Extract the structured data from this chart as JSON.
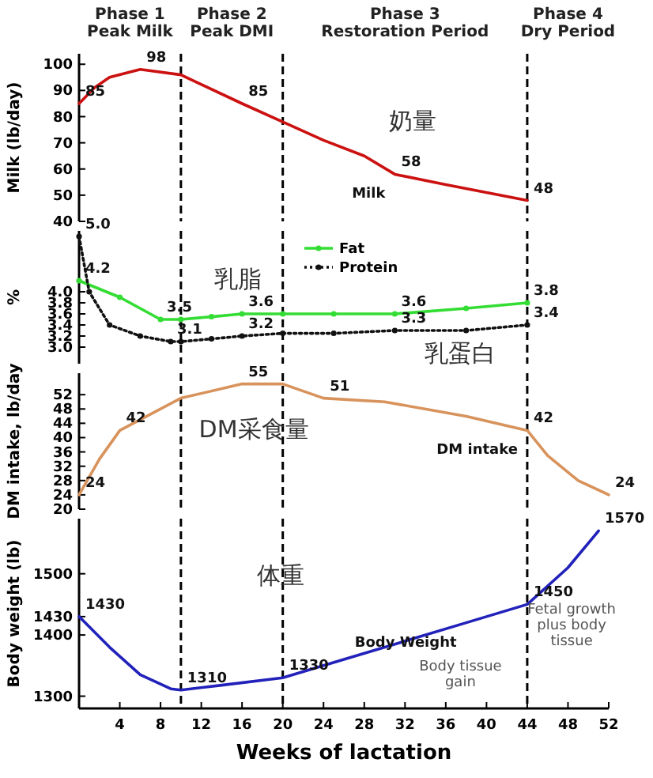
{
  "chart_data": [
    {
      "type": "line",
      "ylabel": "Milk (lb/day)",
      "xlim": [
        0,
        52
      ],
      "ylim": [
        40,
        104
      ],
      "yticks": [
        40,
        50,
        60,
        70,
        80,
        90,
        100
      ],
      "tick_labels": "y",
      "grid": false,
      "legend": false,
      "annotations": [
        "Phase 1\nPeak Milk",
        "Phase 2\nPeak DMI",
        "Phase 3\nRestoration Period",
        "Phase 4\nDry Period",
        "奶量"
      ],
      "ref_lines": [
        {
          "axis": "x",
          "value": 10,
          "line_style": "dashed",
          "color": "#000000"
        },
        {
          "axis": "x",
          "value": 20,
          "line_style": "dashed",
          "color": "#000000"
        },
        {
          "axis": "x",
          "value": 44,
          "line_style": "dashed",
          "color": "#000000"
        }
      ],
      "series": [
        {
          "name": "Milk",
          "color": "#cc1111",
          "x": [
            0,
            1.5,
            3,
            6,
            10,
            16,
            20,
            24,
            28,
            31,
            36,
            40,
            44
          ],
          "values": [
            85,
            91,
            95,
            98,
            96,
            85,
            78,
            71,
            65,
            58,
            54,
            51,
            48
          ],
          "value_labels": [
            "85",
            null,
            null,
            "98",
            null,
            "85",
            null,
            null,
            null,
            "58",
            null,
            null,
            "48"
          ]
        }
      ]
    },
    {
      "type": "line",
      "ylabel": "%",
      "xlim": [
        0,
        52
      ],
      "ylim": [
        2.7,
        5.1
      ],
      "yticks": [
        {
          "value": 3.0,
          "label": "3.0"
        },
        3.2,
        3.4,
        3.6,
        3.8,
        {
          "value": 4.0,
          "label": "4.0"
        }
      ],
      "tick_labels": "y",
      "grid": false,
      "legend": "top",
      "annotations": [
        "乳脂",
        "乳蛋白"
      ],
      "ref_lines": [
        {
          "axis": "x",
          "value": 10,
          "line_style": "dashed",
          "color": "#000000"
        },
        {
          "axis": "x",
          "value": 20,
          "line_style": "dashed",
          "color": "#000000"
        },
        {
          "axis": "x",
          "value": 44,
          "line_style": "dashed",
          "color": "#000000"
        }
      ],
      "series": [
        {
          "name": "Fat",
          "color": "#33dd33",
          "marker": "circle",
          "line_style": "solid",
          "x": [
            0,
            4,
            8,
            10,
            13,
            16,
            20,
            25,
            31,
            38,
            44
          ],
          "values": [
            4.2,
            3.9,
            3.5,
            3.5,
            3.55,
            3.6,
            3.6,
            3.6,
            3.6,
            3.7,
            3.8
          ],
          "value_labels": [
            "4.2",
            null,
            "3.5",
            null,
            null,
            "3.6",
            null,
            null,
            "3.6",
            null,
            "3.8"
          ]
        },
        {
          "name": "Protein",
          "color": "#111111",
          "marker": "circle",
          "line_style": "dotted",
          "x": [
            0,
            1,
            3,
            6,
            9,
            10,
            13,
            16,
            20,
            25,
            31,
            38,
            44
          ],
          "values": [
            5.0,
            4.0,
            3.4,
            3.2,
            3.1,
            3.1,
            3.15,
            3.2,
            3.25,
            3.25,
            3.3,
            3.3,
            3.4
          ],
          "value_labels": [
            "5.0",
            null,
            null,
            null,
            "3.1",
            null,
            null,
            "3.2",
            null,
            null,
            "3.3",
            null,
            "3.4"
          ]
        }
      ]
    },
    {
      "type": "line",
      "ylabel": "DM intake, lb/day",
      "xlim": [
        0,
        52
      ],
      "ylim": [
        20,
        58
      ],
      "yticks": [
        20,
        24,
        28,
        32,
        36,
        40,
        44,
        48,
        52
      ],
      "tick_labels": "y",
      "grid": false,
      "legend": false,
      "annotations": [
        "DM采食量"
      ],
      "ref_lines": [
        {
          "axis": "x",
          "value": 10,
          "line_style": "dashed",
          "color": "#000000"
        },
        {
          "axis": "x",
          "value": 20,
          "line_style": "dashed",
          "color": "#000000"
        },
        {
          "axis": "x",
          "value": 44,
          "line_style": "dashed",
          "color": "#000000"
        }
      ],
      "series": [
        {
          "name": "DM intake",
          "color": "#d8935c",
          "x": [
            0,
            2,
            4,
            10,
            16,
            20,
            24,
            30,
            38,
            44,
            46,
            49,
            52
          ],
          "values": [
            24,
            34,
            42,
            51,
            55,
            55,
            51,
            50,
            46,
            42,
            35,
            28,
            24
          ],
          "value_labels": [
            "24",
            null,
            "42",
            null,
            "55",
            null,
            "51",
            null,
            null,
            "42",
            null,
            null,
            "24"
          ]
        }
      ]
    },
    {
      "type": "line",
      "ylabel": "Body weight (lb)",
      "xlabel": "Weeks of lactation",
      "xlim": [
        0,
        52
      ],
      "xticks": [
        4,
        8,
        12,
        16,
        20,
        24,
        28,
        32,
        36,
        40,
        44,
        48,
        52
      ],
      "ylim": [
        1280,
        1590
      ],
      "yticks": [
        1300,
        1400,
        1430,
        1500
      ],
      "grid": false,
      "legend": false,
      "annotations": [
        "体重",
        "Body tissue\ngain",
        "Fetal growth\nplus body\ntissue"
      ],
      "ref_lines": [
        {
          "axis": "x",
          "value": 10,
          "line_style": "dashed",
          "color": "#000000"
        },
        {
          "axis": "x",
          "value": 20,
          "line_style": "dashed",
          "color": "#000000"
        },
        {
          "axis": "x",
          "value": 44,
          "line_style": "dashed",
          "color": "#000000"
        }
      ],
      "series": [
        {
          "name": "Body Weight",
          "color": "#2222bb",
          "x": [
            0,
            3,
            6,
            9,
            10,
            14,
            20,
            26,
            32,
            38,
            44,
            48,
            51
          ],
          "values": [
            1430,
            1380,
            1335,
            1312,
            1310,
            1318,
            1330,
            1360,
            1390,
            1420,
            1450,
            1510,
            1570
          ],
          "value_labels": [
            "1430",
            null,
            null,
            null,
            "1310",
            null,
            "1330",
            null,
            null,
            null,
            "1450",
            null,
            "1570"
          ]
        }
      ]
    }
  ]
}
